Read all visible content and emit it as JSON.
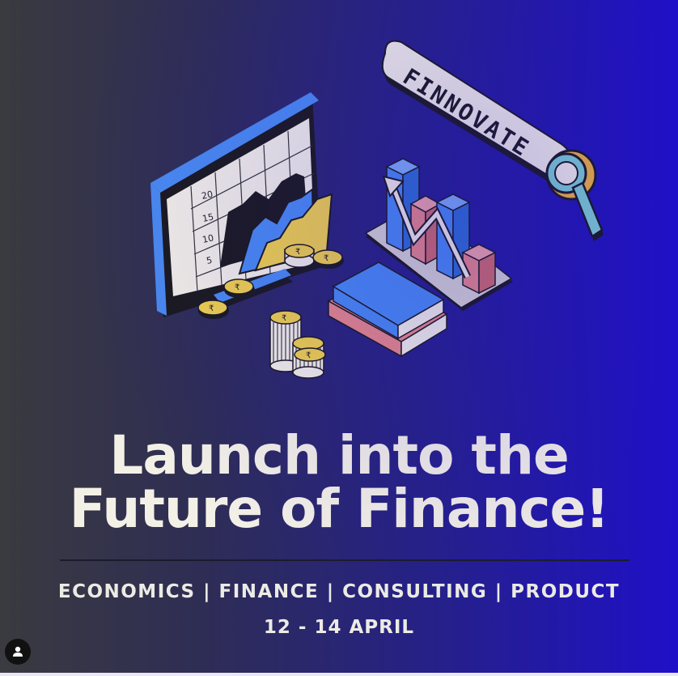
{
  "poster": {
    "badge_text": "FINNOVATE",
    "headline": {
      "line1": "Launch into the",
      "line2": "Future of Finance!"
    },
    "categories": "ECONOMICS | FINANCE | CONSULTING | PRODUCT",
    "dates": "12 - 14 APRIL",
    "monitor_axis_labels": [
      "20",
      "15",
      "10",
      "5"
    ],
    "coin_symbol": "₹",
    "colors": {
      "background_left": "#3a3a40",
      "background_right": "#1f10c8",
      "text": "#f3f0e6",
      "accent_blue": "#4a8cf0",
      "accent_yellow": "#f2d34a",
      "accent_red": "#e98a86",
      "accent_teal": "#7fd2d0"
    }
  }
}
